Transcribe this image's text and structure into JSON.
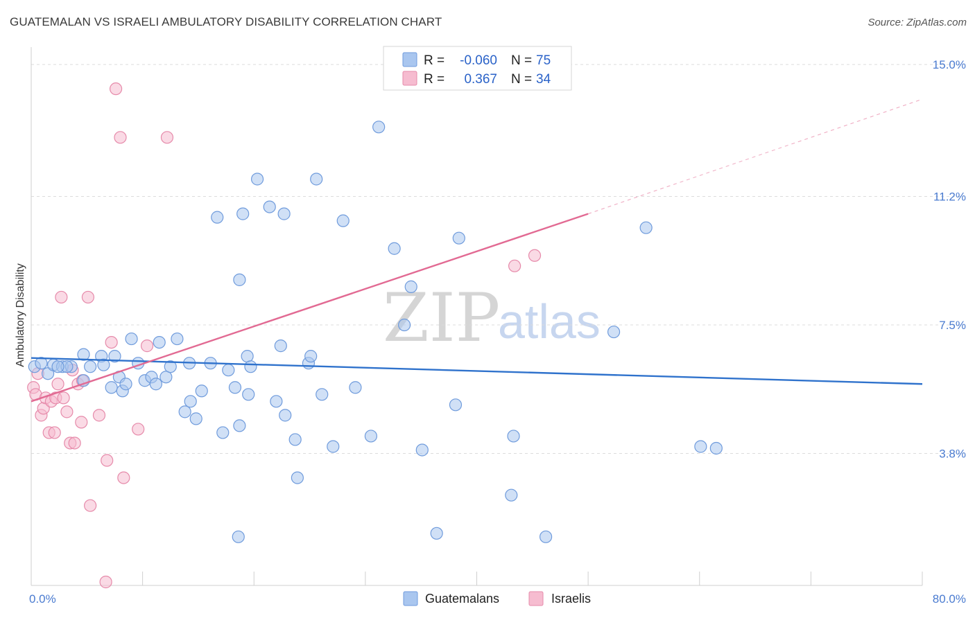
{
  "title": "GUATEMALAN VS ISRAELI AMBULATORY DISABILITY CORRELATION CHART",
  "source": "Source: ZipAtlas.com",
  "watermark": {
    "zip": "ZIP",
    "atlas": "atlas"
  },
  "colors": {
    "guatemalans_fill": "#a9c6ef",
    "guatemalans_stroke": "#6f9bdc",
    "guatemalans_line": "#2f72cc",
    "israelis_fill": "#f6bcd0",
    "israelis_stroke": "#e68aaa",
    "israelis_line": "#e26a93",
    "tick_text": "#4a7bd0",
    "grid": "#dcdcdc"
  },
  "legend": {
    "rows": [
      {
        "r_label": "R =",
        "r_value": "-0.060",
        "n_label": "N =",
        "n_value": "75"
      },
      {
        "r_label": "R =",
        "r_value": "0.367",
        "n_label": "N =",
        "n_value": "34"
      }
    ]
  },
  "bottom_legend": [
    "Guatemalans",
    "Israelis"
  ],
  "chart_data": {
    "type": "scatter",
    "title": "GUATEMALAN VS ISRAELI AMBULATORY DISABILITY CORRELATION CHART",
    "xlabel": "",
    "ylabel": "Ambulatory Disability",
    "xlim": [
      0,
      80
    ],
    "ylim": [
      0,
      15.5
    ],
    "x_tick_labels": [
      "0.0%",
      "80.0%"
    ],
    "y_ticks": [
      3.8,
      7.5,
      11.2,
      15.0
    ],
    "y_tick_labels": [
      "3.8%",
      "7.5%",
      "11.2%",
      "15.0%"
    ],
    "grid": true,
    "legend_position": "top-center",
    "series": [
      {
        "name": "Guatemalans",
        "R": -0.06,
        "N": 75,
        "trend": {
          "x": [
            0,
            80
          ],
          "y": [
            6.55,
            5.8
          ]
        },
        "points": [
          [
            0.3,
            6.3
          ],
          [
            0.9,
            6.4
          ],
          [
            1.5,
            6.1
          ],
          [
            2,
            6.35
          ],
          [
            2.8,
            6.3
          ],
          [
            3.6,
            6.3
          ],
          [
            4.7,
            6.65
          ],
          [
            5.3,
            6.3
          ],
          [
            6.3,
            6.6
          ],
          [
            7.5,
            6.6
          ],
          [
            6.5,
            6.35
          ],
          [
            4.7,
            5.9
          ],
          [
            7.2,
            5.7
          ],
          [
            7.9,
            6.0
          ],
          [
            8.2,
            5.6
          ],
          [
            8.5,
            5.8
          ],
          [
            9,
            7.1
          ],
          [
            9.6,
            6.4
          ],
          [
            10.2,
            5.9
          ],
          [
            10.8,
            6.0
          ],
          [
            11.2,
            5.8
          ],
          [
            11.5,
            7.0
          ],
          [
            12.1,
            6.0
          ],
          [
            12.5,
            6.3
          ],
          [
            13.1,
            7.1
          ],
          [
            13.8,
            5.0
          ],
          [
            14.3,
            5.3
          ],
          [
            14.8,
            4.8
          ],
          [
            14.2,
            6.4
          ],
          [
            15.3,
            5.6
          ],
          [
            16.1,
            6.4
          ],
          [
            16.7,
            10.6
          ],
          [
            17.2,
            4.4
          ],
          [
            17.7,
            6.2
          ],
          [
            18.3,
            5.7
          ],
          [
            18.7,
            8.8
          ],
          [
            19,
            10.7
          ],
          [
            19.4,
            6.6
          ],
          [
            19.7,
            6.3
          ],
          [
            18.6,
            1.4
          ],
          [
            18.7,
            4.6
          ],
          [
            19.5,
            5.5
          ],
          [
            20.3,
            11.7
          ],
          [
            21.4,
            10.9
          ],
          [
            22,
            5.3
          ],
          [
            22.4,
            6.9
          ],
          [
            22.7,
            10.7
          ],
          [
            22.8,
            4.9
          ],
          [
            23.7,
            4.2
          ],
          [
            23.9,
            3.1
          ],
          [
            24.9,
            6.4
          ],
          [
            25.1,
            6.6
          ],
          [
            26.1,
            5.5
          ],
          [
            25.6,
            11.7
          ],
          [
            27.1,
            4.0
          ],
          [
            28,
            10.5
          ],
          [
            29.1,
            5.7
          ],
          [
            30.5,
            4.3
          ],
          [
            31.2,
            13.2
          ],
          [
            32.6,
            9.7
          ],
          [
            34.1,
            8.6
          ],
          [
            33.5,
            7.5
          ],
          [
            35.1,
            3.9
          ],
          [
            36.4,
            1.5
          ],
          [
            38.1,
            5.2
          ],
          [
            38.4,
            10.0
          ],
          [
            43.1,
            2.6
          ],
          [
            43.3,
            4.3
          ],
          [
            46.2,
            1.4
          ],
          [
            52.3,
            7.3
          ],
          [
            55.2,
            10.3
          ],
          [
            60.1,
            4.0
          ],
          [
            61.5,
            3.95
          ],
          [
            3.2,
            6.3
          ],
          [
            2.4,
            6.3
          ]
        ]
      },
      {
        "name": "Israelis",
        "R": 0.367,
        "N": 34,
        "trend": {
          "x": [
            0,
            50
          ],
          "y": [
            5.3,
            10.7
          ]
        },
        "trend_extension": {
          "x": [
            50,
            80
          ],
          "y": [
            10.7,
            14.0
          ]
        },
        "points": [
          [
            0.2,
            5.7
          ],
          [
            0.4,
            5.5
          ],
          [
            0.9,
            4.9
          ],
          [
            1.1,
            5.1
          ],
          [
            1.3,
            5.4
          ],
          [
            1.6,
            4.4
          ],
          [
            1.8,
            5.3
          ],
          [
            2.1,
            4.4
          ],
          [
            2.2,
            5.4
          ],
          [
            2.4,
            5.8
          ],
          [
            2.7,
            8.3
          ],
          [
            2.9,
            5.4
          ],
          [
            3.2,
            5.0
          ],
          [
            3.5,
            4.1
          ],
          [
            3.7,
            6.2
          ],
          [
            3.9,
            4.1
          ],
          [
            4.2,
            5.8
          ],
          [
            4.5,
            4.7
          ],
          [
            4.6,
            5.9
          ],
          [
            5.1,
            8.3
          ],
          [
            5.3,
            2.3
          ],
          [
            6.1,
            4.9
          ],
          [
            6.8,
            3.6
          ],
          [
            7.2,
            7.0
          ],
          [
            7.6,
            14.3
          ],
          [
            8,
            12.9
          ],
          [
            8.3,
            3.1
          ],
          [
            6.7,
            0.1
          ],
          [
            9.6,
            4.5
          ],
          [
            10.4,
            6.9
          ],
          [
            12.2,
            12.9
          ],
          [
            43.4,
            9.2
          ],
          [
            45.2,
            9.5
          ],
          [
            0.6,
            6.1
          ]
        ]
      }
    ]
  }
}
